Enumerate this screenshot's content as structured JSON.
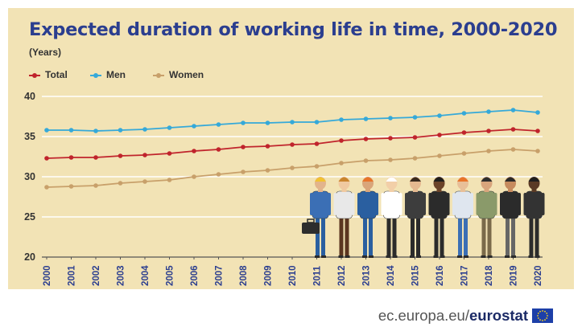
{
  "header": {
    "title": "Expected duration of working life in time, 2000-2020",
    "subtitle": "(Years)"
  },
  "legend": [
    {
      "label": "Total",
      "color": "#c0242c"
    },
    {
      "label": "Men",
      "color": "#35a9d9"
    },
    {
      "label": "Women",
      "color": "#c8a06a"
    }
  ],
  "footer": {
    "site_prefix": "ec.europa.eu/",
    "site_brand": "eurostat",
    "flag_icon": "eu-flag-icon"
  },
  "illustration": {
    "icon": "workers-illustration-icon"
  },
  "chart_data": {
    "type": "line",
    "x": [
      "2000",
      "2001",
      "2002",
      "2003",
      "2004",
      "2005",
      "2006",
      "2007",
      "2008",
      "2009",
      "2010",
      "2011",
      "2012",
      "2013",
      "2014",
      "2015",
      "2016",
      "2017",
      "2018",
      "2019",
      "2020"
    ],
    "series": [
      {
        "name": "Total",
        "color": "#c0242c",
        "values": [
          32.3,
          32.4,
          32.4,
          32.6,
          32.7,
          32.9,
          33.2,
          33.4,
          33.7,
          33.8,
          34.0,
          34.1,
          34.5,
          34.7,
          34.8,
          34.9,
          35.2,
          35.5,
          35.7,
          35.9,
          35.7
        ]
      },
      {
        "name": "Men",
        "color": "#35a9d9",
        "values": [
          35.8,
          35.8,
          35.7,
          35.8,
          35.9,
          36.1,
          36.3,
          36.5,
          36.7,
          36.7,
          36.8,
          36.8,
          37.1,
          37.2,
          37.3,
          37.4,
          37.6,
          37.9,
          38.1,
          38.3,
          38.0
        ]
      },
      {
        "name": "Women",
        "color": "#c8a06a",
        "values": [
          28.7,
          28.8,
          28.9,
          29.2,
          29.4,
          29.6,
          30.0,
          30.3,
          30.6,
          30.8,
          31.1,
          31.3,
          31.7,
          32.0,
          32.1,
          32.3,
          32.6,
          32.9,
          33.2,
          33.4,
          33.2
        ]
      }
    ],
    "ylim": [
      20,
      40
    ],
    "yticks": [
      "20",
      "25",
      "30",
      "35",
      "40"
    ],
    "grid": true,
    "legend_position": "top-left"
  }
}
